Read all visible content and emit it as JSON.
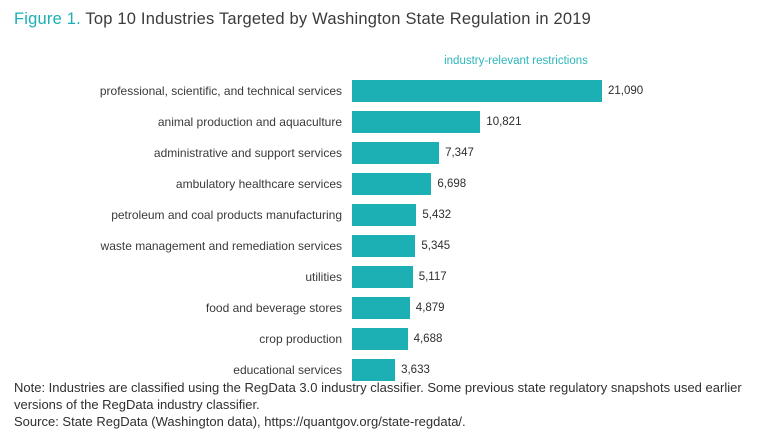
{
  "title": {
    "prefix": "Figure 1.",
    "text": " Top 10 Industries Targeted by Washington State Regulation in 2019"
  },
  "chart_data": {
    "type": "bar",
    "orientation": "horizontal",
    "axis_label": "industry-relevant restrictions",
    "categories": [
      "professional, scientific, and technical services",
      "animal production and aquaculture",
      "administrative and support services",
      "ambulatory healthcare services",
      "petroleum and coal products manufacturing",
      "waste management and remediation services",
      "utilities",
      "food and beverage stores",
      "crop production",
      "educational services"
    ],
    "values": [
      21090,
      10821,
      7347,
      6698,
      5432,
      5345,
      5117,
      4879,
      4688,
      3633
    ],
    "value_labels": [
      "21,090",
      "10,821",
      "7,347",
      "6,698",
      "5,432",
      "5,345",
      "5,117",
      "4,879",
      "4,688",
      "3,633"
    ],
    "xlim": [
      0,
      21090
    ],
    "bar_color": "#1cafb4",
    "accent_color": "#1cafb4",
    "legend": "none",
    "grid": "off"
  },
  "notes": {
    "note": "Note: Industries are classified using the RegData 3.0 industry classifier. Some previous state regulatory snapshots used earlier versions of the RegData industry classifier.",
    "source": "Source: State RegData (Washington data), https://quantgov.org/state-regdata/."
  }
}
